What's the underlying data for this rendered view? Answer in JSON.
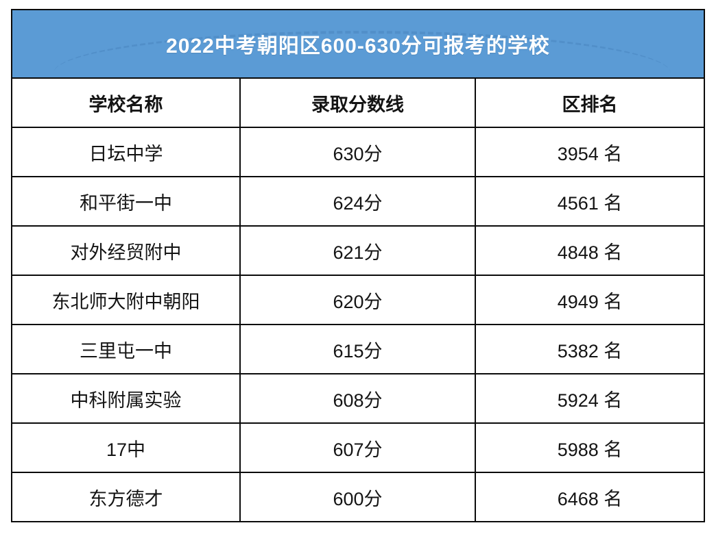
{
  "banner": {
    "title": "2022中考朝阳区600-630分可报考的学校"
  },
  "colors": {
    "banner_bg": "#5B9BD5",
    "banner_text": "#FFFFFF",
    "table_border": "#0A0A0A",
    "cell_text": "#141414"
  },
  "table": {
    "headers": [
      "学校名称",
      "录取分数线",
      "区排名"
    ],
    "rows": [
      {
        "school": "日坛中学",
        "score": "630分",
        "rank": "3954 名"
      },
      {
        "school": "和平街一中",
        "score": "624分",
        "rank": "4561 名"
      },
      {
        "school": "对外经贸附中",
        "score": "621分",
        "rank": "4848 名"
      },
      {
        "school": "东北师大附中朝阳",
        "score": "620分",
        "rank": "4949 名"
      },
      {
        "school": "三里屯一中",
        "score": "615分",
        "rank": "5382 名"
      },
      {
        "school": "中科附属实验",
        "score": "608分",
        "rank": "5924 名"
      },
      {
        "school": "17中",
        "score": "607分",
        "rank": "5988 名"
      },
      {
        "school": "东方德才",
        "score": "600分",
        "rank": "6468 名"
      }
    ]
  },
  "chart_data": {
    "type": "table",
    "title": "2022中考朝阳区600-630分可报考的学校",
    "columns": [
      "学校名称",
      "录取分数线",
      "区排名"
    ],
    "rows": [
      [
        "日坛中学",
        "630分",
        "3954 名"
      ],
      [
        "和平街一中",
        "624分",
        "4561 名"
      ],
      [
        "对外经贸附中",
        "621分",
        "4848 名"
      ],
      [
        "东北师大附中朝阳",
        "620分",
        "4949 名"
      ],
      [
        "三里屯一中",
        "615分",
        "5382 名"
      ],
      [
        "中科附属实验",
        "608分",
        "5924 名"
      ],
      [
        "17中",
        "607分",
        "5988 名"
      ],
      [
        "东方德才",
        "600分",
        "6468 名"
      ]
    ],
    "scores_numeric": [
      630,
      624,
      621,
      620,
      615,
      608,
      607,
      600
    ],
    "ranks_numeric": [
      3954,
      4561,
      4848,
      4949,
      5382,
      5924,
      5988,
      6468
    ]
  }
}
